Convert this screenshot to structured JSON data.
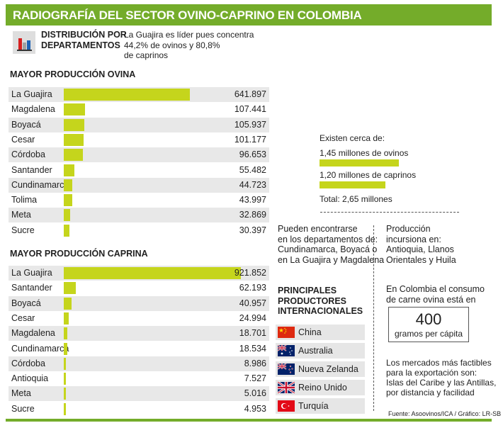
{
  "header": {
    "title": "RADIOGRAFÍA DEL SECTOR OVINO-CAPRINO EN COLOMBIA"
  },
  "distribution": {
    "title_line1": "DISTRIBUCIÓN POR",
    "title_line2": "DEPARTAMENTOS",
    "note_line1": "La Guajira es líder pues concentra",
    "note_line2": "44,2% de ovinos y 80,8%",
    "note_line3": "de caprinos"
  },
  "chart_data": [
    {
      "type": "bar",
      "orientation": "horizontal",
      "title": "MAYOR PRODUCCIÓN OVINA",
      "categories": [
        "La Guajira",
        "Magdalena",
        "Boyacá",
        "Cesar",
        "Córdoba",
        "Santander",
        "Cundinamarca",
        "Tolima",
        "Meta",
        "Sucre"
      ],
      "values": [
        641897,
        107441,
        105937,
        101177,
        96653,
        55482,
        44723,
        43997,
        32869,
        30397
      ],
      "value_labels": [
        "641.897",
        "107.441",
        "105.937",
        "101.177",
        "96.653",
        "55.482",
        "44.723",
        "43.997",
        "32.869",
        "30.397"
      ]
    },
    {
      "type": "bar",
      "orientation": "horizontal",
      "title": "MAYOR PRODUCCIÓN CAPRINA",
      "categories": [
        "La Guajira",
        "Santander",
        "Boyacá",
        "Cesar",
        "Magdalena",
        "Cundinamarca",
        "Córdoba",
        "Antioquia",
        "Meta",
        "Sucre"
      ],
      "values": [
        921852,
        62193,
        40957,
        24994,
        18701,
        18534,
        8986,
        7527,
        5016,
        4953
      ],
      "value_labels": [
        "921.852",
        "62.193",
        "40.957",
        "24.994",
        "18.701",
        "18.534",
        "8.986",
        "7.527",
        "5.016",
        "4.953"
      ]
    },
    {
      "type": "bar",
      "orientation": "horizontal",
      "title": "Existen cerca de:",
      "categories": [
        "1,45 millones de ovinos",
        "1,20 millones de caprinos"
      ],
      "values": [
        1.45,
        1.2
      ],
      "unit": "millones",
      "total_label": "Total: 2,65 millones"
    }
  ],
  "found_in": {
    "line1": "Pueden encontrarse",
    "line2": "en los departamentos de:",
    "line3": "Cundinamarca, Boyacá o",
    "line4": "en La Guajira y Magdalena"
  },
  "production": {
    "line1": "Producción",
    "line2": "incursiona en:",
    "line3": "Antioquia, Llanos",
    "line4": "Orientales y Huila"
  },
  "producers": {
    "title_line1": "PRINCIPALES",
    "title_line2": "PRODUCTORES",
    "title_line3": "INTERNACIONALES",
    "countries": [
      {
        "name": "China",
        "flag": "china-flag-icon"
      },
      {
        "name": "Australia",
        "flag": "australia-flag-icon"
      },
      {
        "name": "Nueva Zelanda",
        "flag": "new-zealand-flag-icon"
      },
      {
        "name": "Reino Unido",
        "flag": "united-kingdom-flag-icon"
      },
      {
        "name": "Turquía",
        "flag": "turkey-flag-icon"
      }
    ]
  },
  "consumption": {
    "line1": "En Colombia el consumo",
    "line2": "de carne ovina está en",
    "value": "400",
    "unit": "gramos per cápita"
  },
  "export": {
    "line1": "Los mercados más factibles",
    "line2": "para la exportación son:",
    "line3": "Islas del Caribe y las Antillas,",
    "line4": "por distancia y facilidad"
  },
  "source": "Fuente: Asoovinos/ICA / Gráfico: LR-SB",
  "colors": {
    "brand_green": "#74ac2a",
    "bar_yellow_green": "#c5d51c",
    "row_shade": "#e8e8e8"
  }
}
